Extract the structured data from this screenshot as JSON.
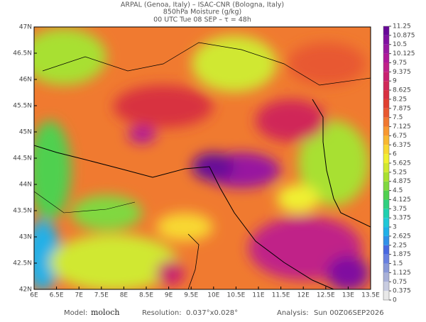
{
  "map": {
    "title": [
      "ARPAL (Genoa, Italy)  –  ISAC-CNR (Bologna, Italy)",
      "850hPa Moisture (g/kg)",
      "00 UTC Tue 08 SEP  –  τ = 48h"
    ],
    "lon_lim": [
      6,
      13.5
    ],
    "lat_lim": [
      42,
      47
    ],
    "lon_ticks": [
      {
        "value": 6,
        "label": "6E"
      },
      {
        "value": 6.5,
        "label": "6.5E"
      },
      {
        "value": 7,
        "label": "7E"
      },
      {
        "value": 7.5,
        "label": "7.5E"
      },
      {
        "value": 8,
        "label": "8E"
      },
      {
        "value": 8.5,
        "label": "8.5E"
      },
      {
        "value": 9,
        "label": "9E"
      },
      {
        "value": 9.5,
        "label": "9.5E"
      },
      {
        "value": 10,
        "label": "10E"
      },
      {
        "value": 10.5,
        "label": "10.5E"
      },
      {
        "value": 11,
        "label": "11E"
      },
      {
        "value": 11.5,
        "label": "11.5E"
      },
      {
        "value": 12,
        "label": "12E"
      },
      {
        "value": 12.5,
        "label": "12.5E"
      },
      {
        "value": 13,
        "label": "13E"
      },
      {
        "value": 13.5,
        "label": "13.5E"
      }
    ],
    "lat_ticks": [
      {
        "value": 42,
        "label": "42N"
      },
      {
        "value": 42.5,
        "label": "42.5N"
      },
      {
        "value": 43,
        "label": "43N"
      },
      {
        "value": 43.5,
        "label": "43.5N"
      },
      {
        "value": 44,
        "label": "44N"
      },
      {
        "value": 44.5,
        "label": "44.5N"
      },
      {
        "value": 45,
        "label": "45N"
      },
      {
        "value": 45.5,
        "label": "45.5N"
      },
      {
        "value": 46,
        "label": "46N"
      },
      {
        "value": 46.5,
        "label": "46.5N"
      },
      {
        "value": 47,
        "label": "47N"
      }
    ],
    "colorbar": {
      "ticks": [
        0,
        0.375,
        0.75,
        1.125,
        1.5,
        1.875,
        2.25,
        2.625,
        3,
        3.375,
        3.75,
        4.125,
        4.5,
        4.875,
        5.25,
        5.625,
        6,
        6.375,
        6.75,
        7.125,
        7.5,
        7.875,
        8.25,
        8.625,
        9,
        9.375,
        9.75,
        10.125,
        10.5,
        10.875,
        11.25
      ],
      "colors": [
        "#e8e8e8",
        "#c8cce0",
        "#a8b0d8",
        "#8898d8",
        "#6880e0",
        "#4868e0",
        "#3090e8",
        "#20b0e8",
        "#20c8d8",
        "#20d0b0",
        "#30d080",
        "#50d050",
        "#80d840",
        "#a8e030",
        "#d0e830",
        "#f0f030",
        "#f8d830",
        "#f8b830",
        "#f89830",
        "#f07830",
        "#e85830",
        "#e04030",
        "#d83040",
        "#d02858",
        "#c82070",
        "#c02088",
        "#b01898",
        "#9818a0",
        "#8010a0",
        "#680898"
      ]
    },
    "footer": {
      "model_label": "Model:",
      "model": "moloch",
      "resolution_label": "Resolution:",
      "resolution": "0.037°x0.028°",
      "analysis_label": "Analysis:",
      "analysis": "Sun 00Z06SEP2026"
    }
  }
}
